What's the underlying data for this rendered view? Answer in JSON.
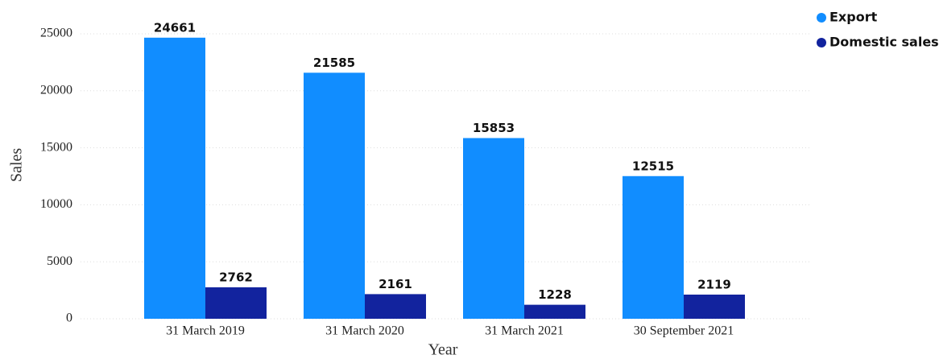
{
  "chart_data": {
    "type": "bar",
    "x_label": "Year",
    "y_label": "Sales",
    "categories": [
      "31 March 2019",
      "31 March 2020",
      "31 March 2021",
      "30 September 2021"
    ],
    "series": [
      {
        "name": "Export",
        "color": "#118dff",
        "values": [
          24661,
          21585,
          15853,
          12515
        ]
      },
      {
        "name": "Domestic sales",
        "color": "#12239e",
        "values": [
          2762,
          2161,
          1228,
          2119
        ]
      }
    ],
    "ylim": [
      0,
      25000
    ],
    "yticks": [
      0,
      5000,
      10000,
      15000,
      20000,
      25000
    ],
    "grid": true,
    "legend": "top-right"
  }
}
